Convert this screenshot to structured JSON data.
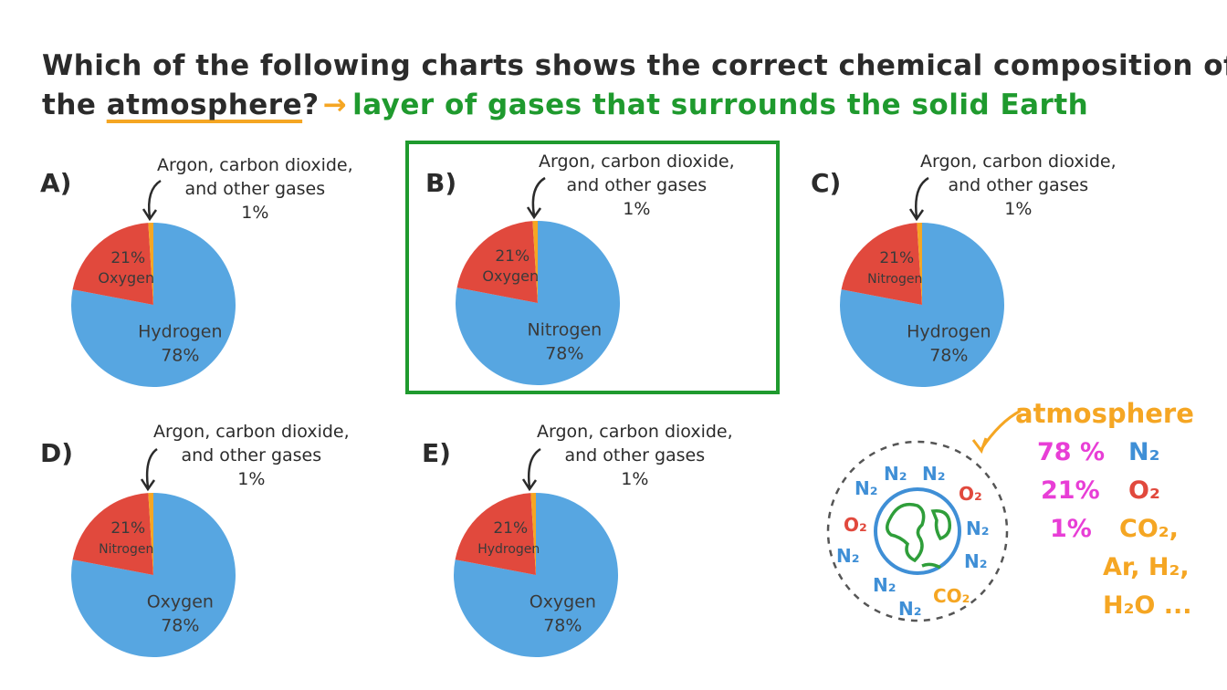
{
  "question": {
    "line1": "Which of the following charts shows the correct chemical composition of",
    "line2_prefix": "the",
    "keyword": "atmosphere",
    "qmark": "?",
    "arrow": "→",
    "definition": "layer of gases that surrounds the solid Earth"
  },
  "annotation": {
    "line1": "Argon, carbon dioxide,",
    "line2": "and other gases",
    "pct": "1%"
  },
  "colors": {
    "large": "#57a6e1",
    "medium": "#e1493d",
    "small": "#f5a623",
    "green": "#1f9a2e",
    "n2": "#3f8fd6",
    "o2": "#e1493d",
    "co2": "#f5a623",
    "pct": "#e83ed6",
    "earth_land": "#2f9e3a",
    "earth_ring": "#3f8fd6"
  },
  "chart_data": [
    {
      "type": "pie",
      "option": "A)",
      "values": [
        78,
        21,
        1
      ],
      "labels": [
        "Hydrogen",
        "Oxygen",
        "Argon, carbon dioxide, and other gases"
      ],
      "label_large": "Hydrogen",
      "label_medium": "Oxygen",
      "pct_large": "78%",
      "pct_medium": "21%",
      "pct_small": "1%"
    },
    {
      "type": "pie",
      "option": "B)",
      "values": [
        78,
        21,
        1
      ],
      "labels": [
        "Nitrogen",
        "Oxygen",
        "Argon, carbon dioxide, and other gases"
      ],
      "label_large": "Nitrogen",
      "label_medium": "Oxygen",
      "pct_large": "78%",
      "pct_medium": "21%",
      "pct_small": "1%"
    },
    {
      "type": "pie",
      "option": "C)",
      "values": [
        78,
        21,
        1
      ],
      "labels": [
        "Hydrogen",
        "Nitrogen",
        "Argon, carbon dioxide, and other gases"
      ],
      "label_large": "Hydrogen",
      "label_medium": "Nitrogen",
      "pct_large": "78%",
      "pct_medium": "21%",
      "pct_small": "1%"
    },
    {
      "type": "pie",
      "option": "D)",
      "values": [
        78,
        21,
        1
      ],
      "labels": [
        "Oxygen",
        "Nitrogen",
        "Argon, carbon dioxide, and other gases"
      ],
      "label_large": "Oxygen",
      "label_medium": "Nitrogen",
      "pct_large": "78%",
      "pct_medium": "21%",
      "pct_small": "1%"
    },
    {
      "type": "pie",
      "option": "E)",
      "values": [
        78,
        21,
        1
      ],
      "labels": [
        "Oxygen",
        "Hydrogen",
        "Argon, carbon dioxide, and other gases"
      ],
      "label_large": "Oxygen",
      "label_medium": "Hydrogen",
      "pct_large": "78%",
      "pct_medium": "21%",
      "pct_small": "1%"
    }
  ],
  "diagram": {
    "title": "atmosphere",
    "n2": "N₂",
    "o2": "O₂",
    "co2": "CO₂",
    "legend": [
      {
        "pct": "78 %",
        "gas": "N₂"
      },
      {
        "pct": "21%",
        "gas": "O₂"
      },
      {
        "pct": "1%",
        "gas": "CO₂,"
      }
    ],
    "legend_extra1": "Ar, H₂,",
    "legend_extra2": "H₂O ..."
  }
}
